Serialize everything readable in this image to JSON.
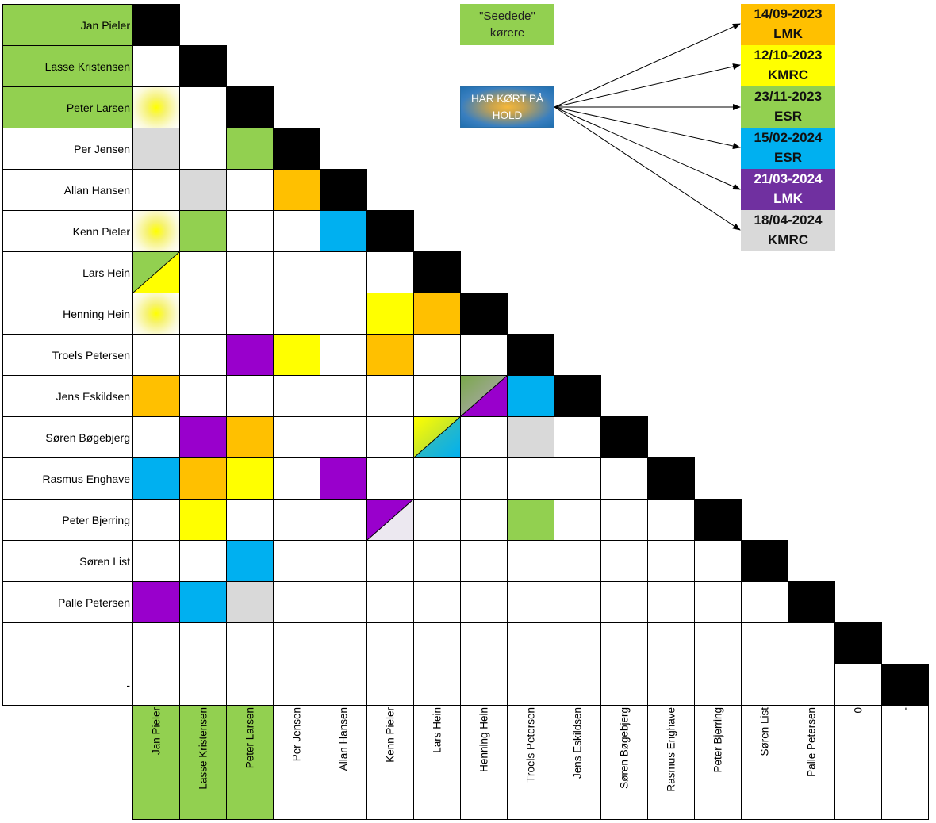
{
  "drivers": [
    "Jan Pieler",
    "Lasse Kristensen",
    "Peter Larsen",
    "Per Jensen",
    "Allan Hansen",
    "Kenn Pieler",
    "Lars Hein",
    "Henning Hein",
    "Troels Petersen",
    "Jens Eskildsen",
    "Søren Bøgebjerg",
    "Rasmus Enghave",
    "Peter Bjerring",
    "Søren List",
    "Palle Petersen",
    "",
    "-"
  ],
  "column_labels": [
    "Jan Pieler",
    "Lasse Kristensen",
    "Peter Larsen",
    "Per Jensen",
    "Allan Hansen",
    "Kenn Pieler",
    "Lars Hein",
    "Henning Hein",
    "Troels Petersen",
    "Jens Eskildsen",
    "Søren Bøgebjerg",
    "Rasmus Enghave",
    "Peter Bjerring",
    "Søren List",
    "Palle Petersen",
    "0",
    "-"
  ],
  "seeded_count": 3,
  "legend": {
    "seeded_label": "\"Seedede\"\nkørere",
    "team_label": "HAR KØRT PÅ HOLD"
  },
  "events": [
    {
      "date": "14/09-2023",
      "track": "LMK",
      "color": "#FFC000"
    },
    {
      "date": "12/10-2023",
      "track": "KMRC",
      "color": "#FFFF00"
    },
    {
      "date": "23/11-2023",
      "track": "ESR",
      "color": "#92D050"
    },
    {
      "date": "15/02-2024",
      "track": "ESR",
      "color": "#00B0F0"
    },
    {
      "date": "21/03-2024",
      "track": "LMK",
      "color": "#7030A0"
    },
    {
      "date": "18/04-2024",
      "track": "KMRC",
      "color": "#D9D9D9"
    }
  ],
  "colors": {
    "seeded": "#92D050",
    "diagonal": "#000000",
    "empty": "#FFFFFF",
    "orange": "#FFC000",
    "yellow": "#FFFF00",
    "green": "#92D050",
    "blue": "#00B0F0",
    "purple": "#9900CC",
    "grey": "#D9D9D9",
    "team": "#1F6FB0"
  },
  "pairings": [
    {
      "row": 2,
      "col": 0,
      "fill": "team"
    },
    {
      "row": 3,
      "col": 0,
      "fill": "grey"
    },
    {
      "row": 3,
      "col": 2,
      "fill": "green"
    },
    {
      "row": 4,
      "col": 1,
      "fill": "grey"
    },
    {
      "row": 4,
      "col": 3,
      "fill": "orange"
    },
    {
      "row": 5,
      "col": 0,
      "fill": "team"
    },
    {
      "row": 5,
      "col": 1,
      "fill": "green"
    },
    {
      "row": 5,
      "col": 4,
      "fill": "blue"
    },
    {
      "row": 6,
      "col": 0,
      "fill": "split:green:yellow"
    },
    {
      "row": 7,
      "col": 0,
      "fill": "team"
    },
    {
      "row": 7,
      "col": 5,
      "fill": "yellow"
    },
    {
      "row": 7,
      "col": 6,
      "fill": "orange"
    },
    {
      "row": 8,
      "col": 2,
      "fill": "purple"
    },
    {
      "row": 8,
      "col": 3,
      "fill": "yellow"
    },
    {
      "row": 8,
      "col": 5,
      "fill": "orange"
    },
    {
      "row": 9,
      "col": 0,
      "fill": "orange"
    },
    {
      "row": 9,
      "col": 7,
      "fill": "split:grad-green-grey:purple"
    },
    {
      "row": 9,
      "col": 8,
      "fill": "blue"
    },
    {
      "row": 10,
      "col": 1,
      "fill": "purple"
    },
    {
      "row": 10,
      "col": 2,
      "fill": "orange"
    },
    {
      "row": 10,
      "col": 6,
      "fill": "split:yellow-green:teal-blue"
    },
    {
      "row": 10,
      "col": 8,
      "fill": "grey"
    },
    {
      "row": 11,
      "col": 0,
      "fill": "blue"
    },
    {
      "row": 11,
      "col": 1,
      "fill": "orange"
    },
    {
      "row": 11,
      "col": 2,
      "fill": "yellow"
    },
    {
      "row": 11,
      "col": 4,
      "fill": "purple"
    },
    {
      "row": 12,
      "col": 1,
      "fill": "yellow"
    },
    {
      "row": 12,
      "col": 5,
      "fill": "split:purple:grey"
    },
    {
      "row": 12,
      "col": 8,
      "fill": "green"
    },
    {
      "row": 13,
      "col": 2,
      "fill": "blue"
    },
    {
      "row": 14,
      "col": 0,
      "fill": "purple"
    },
    {
      "row": 14,
      "col": 1,
      "fill": "blue"
    },
    {
      "row": 14,
      "col": 2,
      "fill": "grey"
    }
  ]
}
